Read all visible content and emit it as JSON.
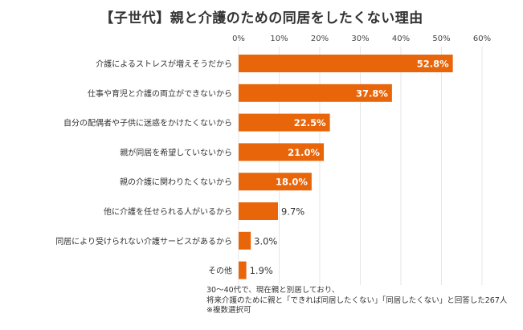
{
  "chart_data": {
    "type": "bar",
    "orientation": "horizontal",
    "title": "【子世代】親と介護のための同居をしたくない理由",
    "categories": [
      "介護によるストレスが増えそうだから",
      "仕事や育児と介護の両立ができないから",
      "自分の配偶者や子供に迷惑をかけたくないから",
      "親が同居を希望していないから",
      "親の介護に関わりたくないから",
      "他に介護を任せられる人がいるから",
      "同居により受けられない介護サービスがあるから",
      "その他"
    ],
    "values": [
      52.8,
      37.8,
      22.5,
      21.0,
      18.0,
      9.7,
      3.0,
      1.9
    ],
    "value_labels": [
      "52.8%",
      "37.8%",
      "22.5%",
      "21.0%",
      "18.0%",
      "9.7%",
      "3.0%",
      "1.9%"
    ],
    "xlim": [
      0,
      60
    ],
    "xticks": [
      0,
      10,
      20,
      30,
      40,
      50,
      60
    ],
    "xtick_labels": [
      "0%",
      "10%",
      "20%",
      "30%",
      "40%",
      "50%",
      "60%"
    ],
    "xlabel": "",
    "ylabel": "",
    "grid": true,
    "bar_color": "#E8650A",
    "note_lines": [
      "30～40代で、現在親と別居しており、",
      "将来介護のために親と「できれば同居したくない」「同居したくない」と回答した267人",
      "※複数選択可"
    ]
  }
}
